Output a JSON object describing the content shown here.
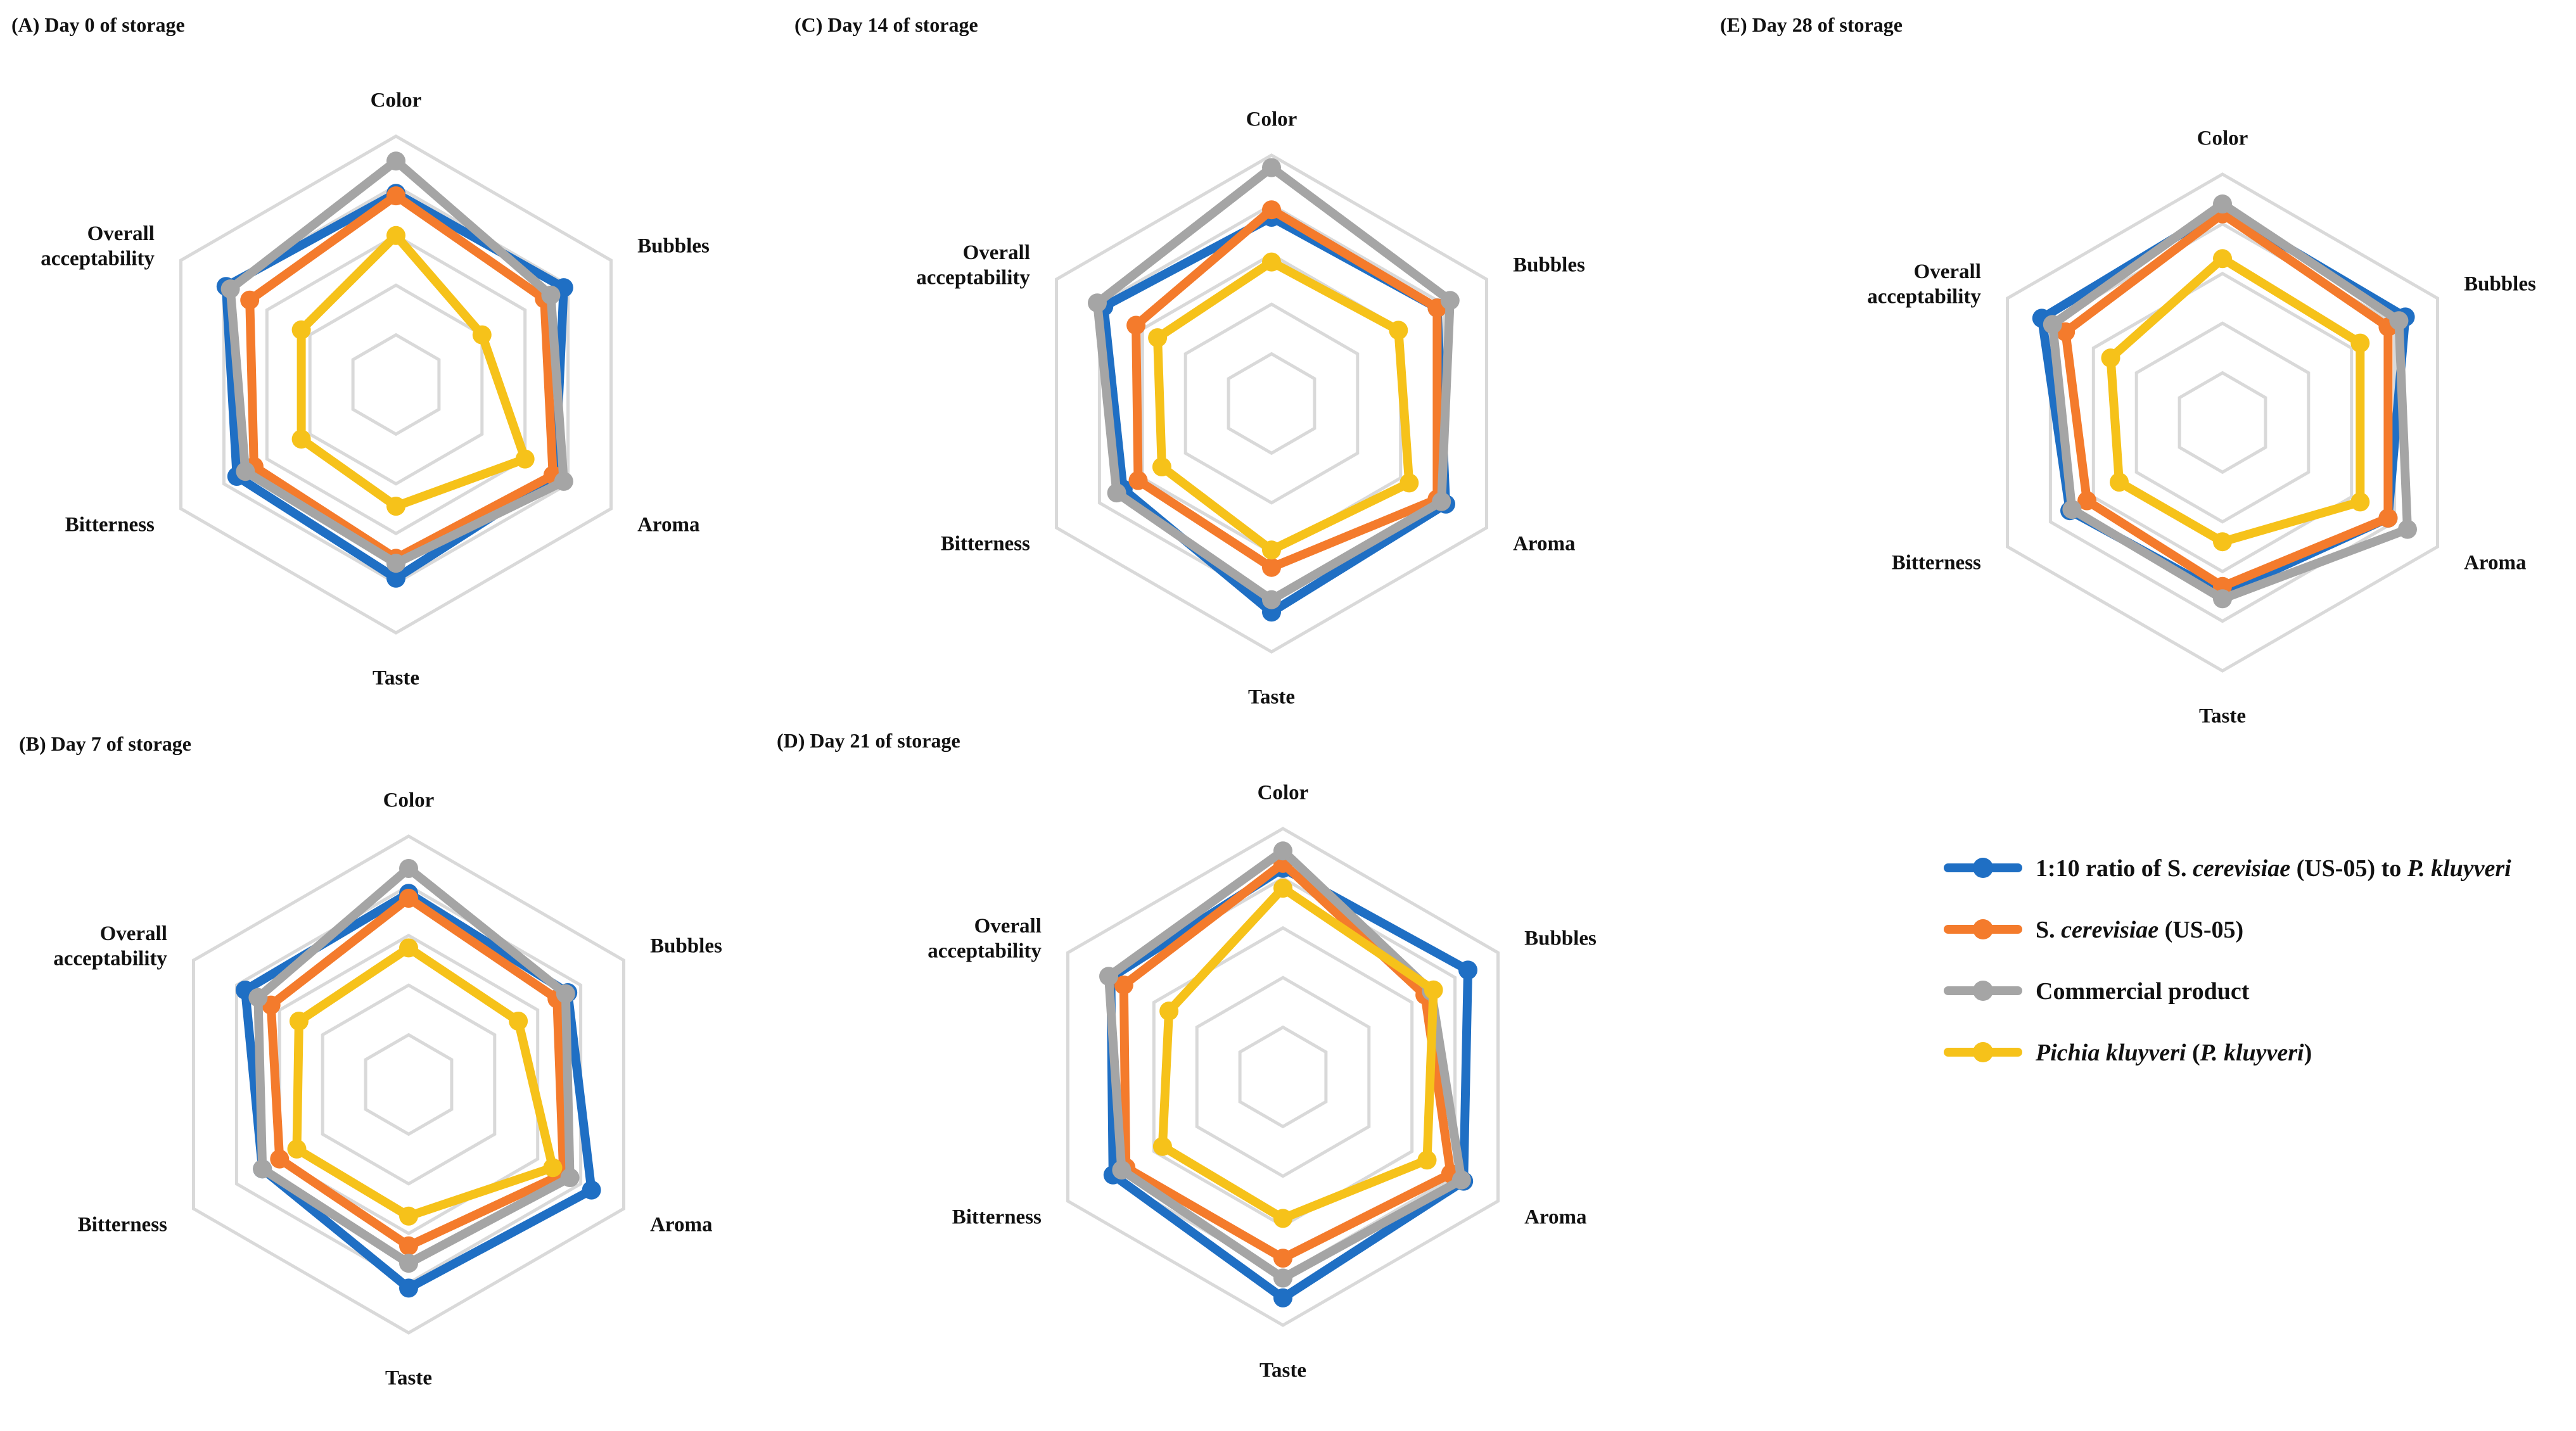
{
  "figure": {
    "legend": {
      "entries": [
        {
          "series": "blend",
          "parts": [
            {
              "t": "1:10 ratio of S. "
            },
            {
              "t": "cerevisiae",
              "i": true
            },
            {
              "t": " (US-05) to "
            },
            {
              "t": "P. kluyveri",
              "i": true
            }
          ]
        },
        {
          "series": "sc",
          "parts": [
            {
              "t": "S. "
            },
            {
              "t": "cerevisiae",
              "i": true
            },
            {
              "t": " (US-05)"
            }
          ]
        },
        {
          "series": "commercial",
          "parts": [
            {
              "t": "Commercial product"
            }
          ]
        },
        {
          "series": "pk",
          "parts": [
            {
              "t": "Pichia kluyveri",
              "i": true
            },
            {
              "t": " ("
            },
            {
              "t": "P. kluyveri",
              "i": true
            },
            {
              "t": ")"
            }
          ]
        }
      ]
    },
    "axes": [
      {
        "key": "color",
        "lines": [
          "Color"
        ]
      },
      {
        "key": "bubbles",
        "lines": [
          "Bubbles"
        ]
      },
      {
        "key": "aroma",
        "lines": [
          "Aroma"
        ]
      },
      {
        "key": "taste",
        "lines": [
          "Taste"
        ]
      },
      {
        "key": "bitterness",
        "lines": [
          "Bitterness"
        ]
      },
      {
        "key": "overall",
        "lines": [
          "Overall",
          "acceptability"
        ]
      }
    ],
    "colors": {
      "blend": "#1f6fc4",
      "sc": "#f47b2c",
      "commercial": "#a5a5a5",
      "pk": "#f6c21a",
      "grid": "#d9d9d9"
    }
  },
  "chart_data": [
    {
      "type": "radar",
      "id": "A",
      "title": "(A) Day 0 of storage",
      "rmax": 10,
      "grid_levels": [
        2,
        4,
        6,
        8,
        10
      ],
      "axes": [
        "Color",
        "Bubbles",
        "Aroma",
        "Taste",
        "Bitterness",
        "Overall acceptability"
      ],
      "series": [
        {
          "name": "1:10 ratio of S. cerevisiae (US-05) to P. kluyveri",
          "key": "blend",
          "values": [
            7.7,
            7.8,
            7.4,
            7.8,
            7.4,
            7.9
          ]
        },
        {
          "name": "S. cerevisiae (US-05)",
          "key": "sc",
          "values": [
            7.6,
            6.9,
            7.3,
            7.0,
            6.6,
            6.8
          ]
        },
        {
          "name": "Commercial product",
          "key": "commercial",
          "values": [
            9.0,
            7.2,
            7.8,
            7.2,
            7.0,
            7.7
          ]
        },
        {
          "name": "Pichia kluyveri (P. kluyveri)",
          "key": "pk",
          "values": [
            6.0,
            4.0,
            6.0,
            4.9,
            4.4,
            4.4
          ]
        }
      ]
    },
    {
      "type": "radar",
      "id": "B",
      "title": "(B) Day 7 of storage",
      "rmax": 10,
      "grid_levels": [
        2,
        4,
        6,
        8,
        10
      ],
      "axes": [
        "Color",
        "Bubbles",
        "Aroma",
        "Taste",
        "Bitterness",
        "Overall acceptability"
      ],
      "series": [
        {
          "name": "1:10 ratio of S. cerevisiae (US-05) to P. kluyveri",
          "key": "blend",
          "values": [
            7.7,
            7.4,
            8.5,
            8.2,
            6.8,
            7.6
          ]
        },
        {
          "name": "S. cerevisiae (US-05)",
          "key": "sc",
          "values": [
            7.5,
            6.9,
            7.2,
            6.5,
            6.0,
            6.4
          ]
        },
        {
          "name": "Commercial product",
          "key": "commercial",
          "values": [
            8.7,
            7.3,
            7.5,
            7.2,
            6.8,
            7.0
          ]
        },
        {
          "name": "Pichia kluyveri (P. kluyveri)",
          "key": "pk",
          "values": [
            5.5,
            5.1,
            6.7,
            5.3,
            5.2,
            5.1
          ]
        }
      ]
    },
    {
      "type": "radar",
      "id": "C",
      "title": "(C) Day 14 of storage",
      "rmax": 10,
      "grid_levels": [
        2,
        4,
        6,
        8,
        10
      ],
      "axes": [
        "Color",
        "Bubbles",
        "Aroma",
        "Taste",
        "Bitterness",
        "Overall acceptability"
      ],
      "series": [
        {
          "name": "1:10 ratio of S. cerevisiae (US-05) to P. kluyveri",
          "key": "blend",
          "values": [
            7.5,
            7.7,
            8.1,
            8.4,
            6.9,
            7.8
          ]
        },
        {
          "name": "S. cerevisiae (US-05)",
          "key": "sc",
          "values": [
            7.8,
            7.7,
            7.7,
            6.6,
            6.2,
            6.3
          ]
        },
        {
          "name": "Commercial product",
          "key": "commercial",
          "values": [
            9.5,
            8.3,
            7.9,
            7.9,
            7.2,
            8.1
          ]
        },
        {
          "name": "Pichia kluyveri (P. kluyveri)",
          "key": "pk",
          "values": [
            5.7,
            5.9,
            6.4,
            5.9,
            5.1,
            5.3
          ]
        }
      ]
    },
    {
      "type": "radar",
      "id": "D",
      "title": "(D) Day 21 of storage",
      "rmax": 10,
      "grid_levels": [
        2,
        4,
        6,
        8,
        10
      ],
      "axes": [
        "Color",
        "Bubbles",
        "Aroma",
        "Taste",
        "Bitterness",
        "Overall acceptability"
      ],
      "series": [
        {
          "name": "1:10 ratio of S. cerevisiae (US-05) to P. kluyveri",
          "key": "blend",
          "values": [
            8.4,
            8.6,
            8.4,
            8.9,
            7.9,
            8.0
          ]
        },
        {
          "name": "S. cerevisiae (US-05)",
          "key": "sc",
          "values": [
            8.6,
            6.6,
            7.8,
            7.3,
            7.3,
            7.4
          ]
        },
        {
          "name": "Commercial product",
          "key": "commercial",
          "values": [
            9.1,
            6.9,
            8.3,
            8.1,
            7.5,
            8.1
          ]
        },
        {
          "name": "Pichia kluyveri (P. kluyveri)",
          "key": "pk",
          "values": [
            7.6,
            7.0,
            6.7,
            5.7,
            5.6,
            5.3
          ]
        }
      ]
    },
    {
      "type": "radar",
      "id": "E",
      "title": "(E) Day 28 of storage",
      "rmax": 10,
      "grid_levels": [
        2,
        4,
        6,
        8,
        10
      ],
      "axes": [
        "Color",
        "Bubbles",
        "Aroma",
        "Taste",
        "Bitterness",
        "Overall acceptability"
      ],
      "series": [
        {
          "name": "1:10 ratio of S. cerevisiae (US-05) to P. kluyveri",
          "key": "blend",
          "values": [
            8.6,
            8.5,
            7.7,
            6.9,
            7.1,
            8.4
          ]
        },
        {
          "name": "S. cerevisiae (US-05)",
          "key": "sc",
          "values": [
            8.4,
            7.7,
            7.7,
            6.6,
            6.3,
            7.3
          ]
        },
        {
          "name": "Commercial product",
          "key": "commercial",
          "values": [
            8.8,
            8.2,
            8.6,
            7.1,
            7.0,
            7.9
          ]
        },
        {
          "name": "Pichia kluyveri (P. kluyveri)",
          "key": "pk",
          "values": [
            6.6,
            6.4,
            6.4,
            4.8,
            4.8,
            5.2
          ]
        }
      ]
    }
  ]
}
